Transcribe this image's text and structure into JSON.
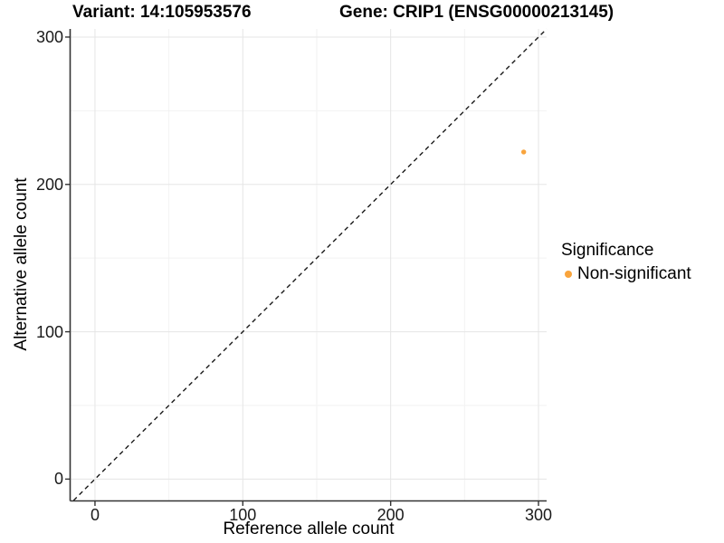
{
  "figure": {
    "title_left": "Variant: 14:105953576",
    "title_right": "Gene: CRIP1 (ENSG00000213145)"
  },
  "chart_data": {
    "type": "scatter",
    "title": "Variant: 14:105953576   Gene: CRIP1 (ENSG00000213145)",
    "xlabel": "Reference allele count",
    "ylabel": "Alternative allele count",
    "x_ticks": [
      0,
      100,
      200,
      300
    ],
    "y_ticks": [
      0,
      100,
      200,
      300
    ],
    "x_minor_ticks": [
      50,
      150,
      250
    ],
    "y_minor_ticks": [
      50,
      150,
      250
    ],
    "xlim": [
      -16.5,
      305.5
    ],
    "ylim": [
      -14.5,
      305.5
    ],
    "grid": true,
    "points": [
      {
        "x": 290,
        "y": 222,
        "series": "Non-significant"
      }
    ],
    "reference_line": {
      "slope": 1,
      "intercept": 0,
      "style": "dashed",
      "meaning": "identity line y = x"
    },
    "legend": {
      "position": "right",
      "title": "Significance",
      "items": [
        {
          "label": "Non-significant",
          "color": "#F9A43C"
        }
      ]
    },
    "colors": {
      "point": "#F9A43C",
      "grid_major": "#E5E5E5",
      "grid_minor": "#F2F2F2",
      "axis_line": "#333333",
      "tick_mark": "#333333",
      "reference_line": "#1a1a1a",
      "text": "#000000",
      "background": "#FFFFFF"
    }
  }
}
